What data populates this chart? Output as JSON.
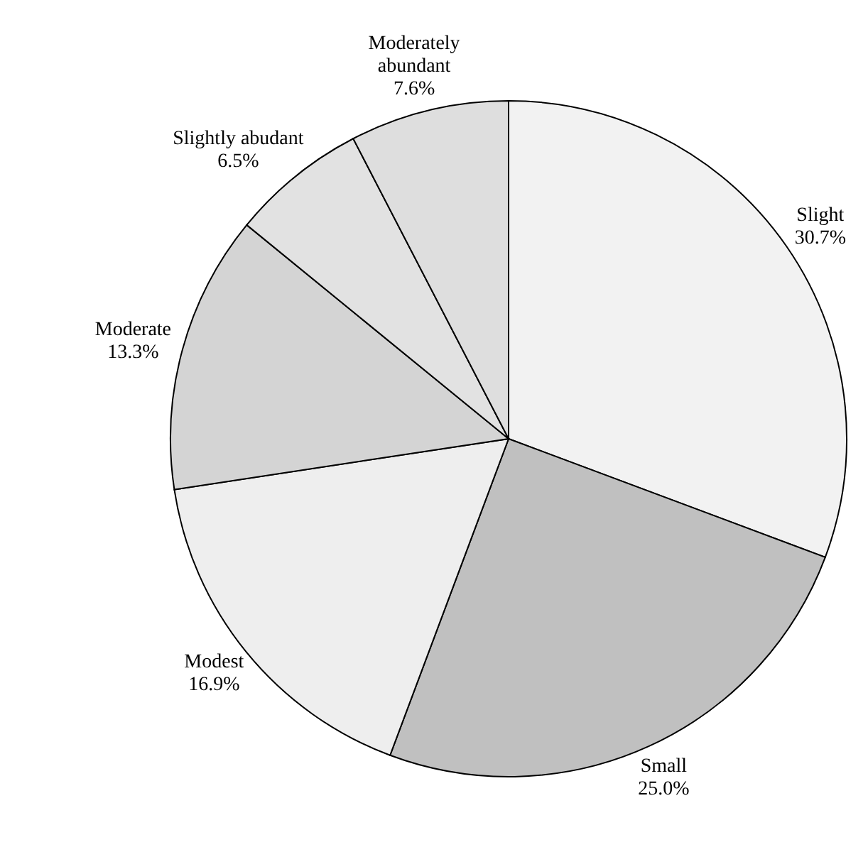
{
  "chart_data": {
    "type": "pie",
    "categories": [
      "Slight",
      "Small",
      "Modest",
      "Moderate",
      "Slightly abudant",
      "Moderately abundant"
    ],
    "values": [
      30.7,
      25.0,
      16.9,
      13.3,
      6.5,
      7.6
    ],
    "value_labels": [
      "30.7%",
      "25.0%",
      "16.9%",
      "13.3%",
      "6.5%",
      "7.6%"
    ],
    "colors": [
      "#f2f2f2",
      "#c0c0c0",
      "#eeeeee",
      "#d4d4d4",
      "#e2e2e2",
      "#dedede"
    ],
    "legend": false
  }
}
